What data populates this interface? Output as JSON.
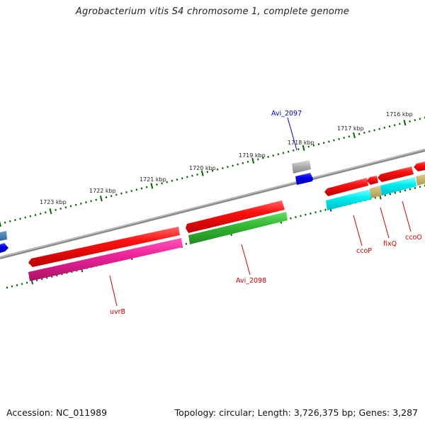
{
  "title": "Agrobacterium vitis S4 chromosome 1, complete genome",
  "footer": {
    "accession": "Accession: NC_011989",
    "summary": "Topology: circular; Length: 3,726,375 bp; Genes: 3,287"
  },
  "scale_labels": [
    "1716 kbp",
    "1717 kbp",
    "1718 kbp",
    "1719 kbp",
    "1720 kbp",
    "1721 kbp",
    "1722 kbp",
    "1723 kbp"
  ],
  "gene_labels": {
    "avi2097": "Avi_2097",
    "avi2098": "Avi_2098",
    "uvrB": "uvrB",
    "ccoP": "ccoP",
    "fixQ": "fixQ",
    "ccoO": "ccoO"
  },
  "colors": {
    "backbone": "#8a8a8a",
    "forward_gene": "#ee0000",
    "reverse_pink": "#ee2299",
    "reverse_green": "#33bb33",
    "cyan": "#00e5ee",
    "gray_gene": "#aaaaaa",
    "blue_gene": "#0000ee",
    "tan": "#c8b070",
    "tick": "#006600",
    "red_label": "#cc0000",
    "blue_label": "#0000cc"
  }
}
